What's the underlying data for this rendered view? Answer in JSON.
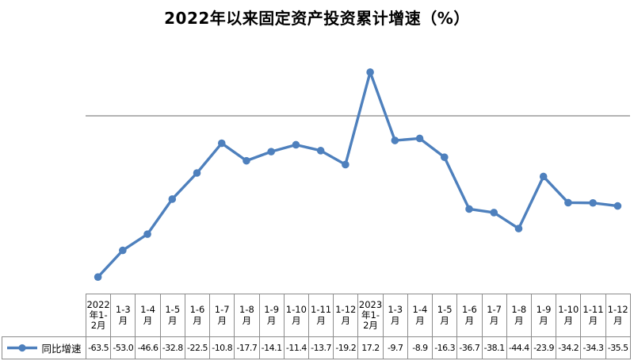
{
  "colors": {
    "line": "#4E80BD",
    "axis": "#9a9a9a",
    "table_border": "#8c8c8c",
    "text": "#000000",
    "background": "#ffffff"
  },
  "chart_data": {
    "type": "line",
    "title": "2022年以来固定资产投资累计增速（%）",
    "xlabel": "",
    "ylabel": "",
    "categories": [
      "2022年1-2月",
      "1-3月",
      "1-4月",
      "1-5月",
      "1-6月",
      "1-7月",
      "1-8月",
      "1-9月",
      "1-10月",
      "1-11月",
      "1-12月",
      "2023年1-2月",
      "1-3月",
      "1-4月",
      "1-5月",
      "1-6月",
      "1-7月",
      "1-8月",
      "1-9月",
      "1-10月",
      "1-11月",
      "1-12月"
    ],
    "series": [
      {
        "name": "同比增速",
        "values": [
          -63.5,
          -53.0,
          -46.6,
          -32.8,
          -22.5,
          -10.8,
          -17.7,
          -14.1,
          -11.4,
          -13.7,
          -19.2,
          17.2,
          -9.7,
          -8.9,
          -16.3,
          -36.7,
          -38.1,
          -44.4,
          -23.9,
          -34.2,
          -34.3,
          -35.5
        ],
        "value_labels": [
          "-63.5",
          "-53.0",
          "-46.6",
          "-32.8",
          "-22.5",
          "-10.8",
          "-17.7",
          "-14.1",
          "-11.4",
          "-13.7",
          "-19.2",
          "17.2",
          "-9.7",
          "-8.9",
          "-16.3",
          "-36.7",
          "-38.1",
          "-44.4",
          "-23.9",
          "-34.2",
          "-34.3",
          "-35.5"
        ]
      }
    ],
    "ylim": [
      -70,
      30
    ],
    "zero_line": true,
    "grid": false,
    "y_axis_labels_shown": false,
    "legend_position": "table-left",
    "marker": "circle"
  }
}
